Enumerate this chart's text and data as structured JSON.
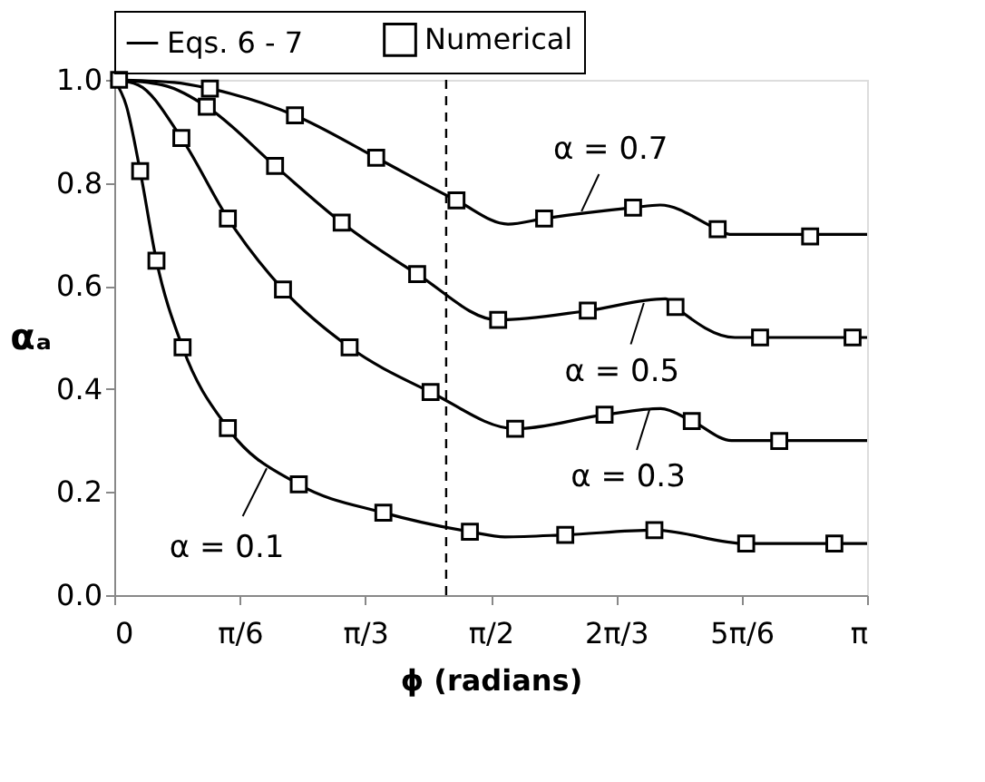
{
  "chart_data": {
    "type": "line",
    "xlabel": "ϕ  (radians)",
    "ylabel": "αₐ",
    "legend": "top",
    "grid": false,
    "line_style": "solid",
    "xlim": [
      0,
      3.1416
    ],
    "ylim": [
      0,
      1
    ],
    "xticks": [
      {
        "value": 0,
        "label": "0"
      },
      {
        "value": 0.5236,
        "label": "π/6"
      },
      {
        "value": 1.0472,
        "label": "π/3"
      },
      {
        "value": 1.5708,
        "label": "π/2"
      },
      {
        "value": 2.0944,
        "label": "2π/3"
      },
      {
        "value": 2.618,
        "label": "5π/6"
      },
      {
        "value": 3.1416,
        "label": "π"
      }
    ],
    "yticks": [
      {
        "value": 0,
        "label": "0.0"
      },
      {
        "value": 0.2,
        "label": "0.2"
      },
      {
        "value": 0.4,
        "label": "0.4"
      },
      {
        "value": 0.6,
        "label": "0.6"
      },
      {
        "value": 0.8,
        "label": "0.8"
      },
      {
        "value": 1,
        "label": "1.0"
      }
    ],
    "series": [
      {
        "name": "Eqs. 6 - 7",
        "color": "#000000",
        "x": [
          0,
          0.05,
          0.108,
          0.176,
          0.285,
          0.474,
          0.77,
          1.123,
          1.484,
          1.63,
          1.882,
          2.254,
          2.637,
          3.1416
        ],
        "values": [
          1,
          0.95,
          0.823,
          0.649,
          0.481,
          0.324,
          0.215,
          0.16,
          0.123,
          0.113,
          0.117,
          0.126,
          0.1,
          0.1
        ]
      },
      {
        "color": "#000000",
        "x": [
          0,
          0.1,
          0.28,
          0.474,
          0.704,
          0.982,
          1.32,
          1.673,
          2.046,
          2.28,
          2.41,
          2.576,
          3.1416
        ],
        "values": [
          1,
          0.99,
          0.887,
          0.731,
          0.593,
          0.481,
          0.394,
          0.323,
          0.35,
          0.362,
          0.338,
          0.3,
          0.3
        ]
      },
      {
        "color": "#000000",
        "x": [
          0,
          0.2,
          0.386,
          0.671,
          0.949,
          1.264,
          1.602,
          1.976,
          2.3,
          2.342,
          2.59,
          3.1416
        ],
        "values": [
          1,
          0.99,
          0.948,
          0.833,
          0.723,
          0.623,
          0.534,
          0.552,
          0.575,
          0.559,
          0.5,
          0.5
        ]
      },
      {
        "color": "#000000",
        "x": [
          0,
          0.25,
          0.399,
          0.754,
          1.093,
          1.428,
          1.643,
          1.794,
          2.165,
          2.278,
          2.518,
          2.569,
          3.1416
        ],
        "values": [
          1,
          0.995,
          0.983,
          0.931,
          0.849,
          0.766,
          0.72,
          0.731,
          0.752,
          0.757,
          0.71,
          0.7,
          0.7
        ]
      },
      {
        "name": "Numerical",
        "type": "scatter",
        "marker": "square",
        "color": "#000000",
        "x": [
          0.02,
          0.108,
          0.176,
          0.285,
          0.474,
          0.77,
          1.123,
          1.484,
          1.882,
          2.254,
          2.637,
          3.005
        ],
        "values": [
          1,
          0.823,
          0.649,
          0.481,
          0.324,
          0.215,
          0.16,
          0.123,
          0.117,
          0.126,
          0.1,
          0.1
        ]
      },
      {
        "type": "scatter",
        "marker": "square",
        "color": "#000000",
        "x": [
          0.28,
          0.474,
          0.704,
          0.982,
          1.32,
          1.673,
          2.046,
          2.41,
          2.775
        ],
        "values": [
          0.887,
          0.731,
          0.593,
          0.481,
          0.394,
          0.323,
          0.35,
          0.338,
          0.299
        ]
      },
      {
        "type": "scatter",
        "marker": "square",
        "color": "#000000",
        "x": [
          0.386,
          0.671,
          0.949,
          1.264,
          1.602,
          1.976,
          2.342,
          2.695,
          3.081
        ],
        "values": [
          0.948,
          0.833,
          0.723,
          0.623,
          0.534,
          0.552,
          0.559,
          0.5,
          0.5
        ]
      },
      {
        "type": "scatter",
        "marker": "square",
        "color": "#000000",
        "x": [
          0.399,
          0.754,
          1.093,
          1.428,
          1.794,
          2.165,
          2.518,
          2.904
        ],
        "values": [
          0.983,
          0.931,
          0.849,
          0.766,
          0.731,
          0.752,
          0.71,
          0.696
        ]
      }
    ],
    "ref_lines": [
      {
        "axis": "x",
        "value": 1.385,
        "line_style": "dashed",
        "color": "#000000"
      }
    ],
    "annotations": [
      {
        "text": "α = 0.7",
        "x": 1.95,
        "y": 0.745
      },
      {
        "text": "α = 0.5",
        "x": 2.21,
        "y": 0.567
      },
      {
        "text": "α = 0.3",
        "x": 2.235,
        "y": 0.362
      },
      {
        "text": "α = 0.1",
        "x": 0.636,
        "y": 0.246
      }
    ]
  }
}
